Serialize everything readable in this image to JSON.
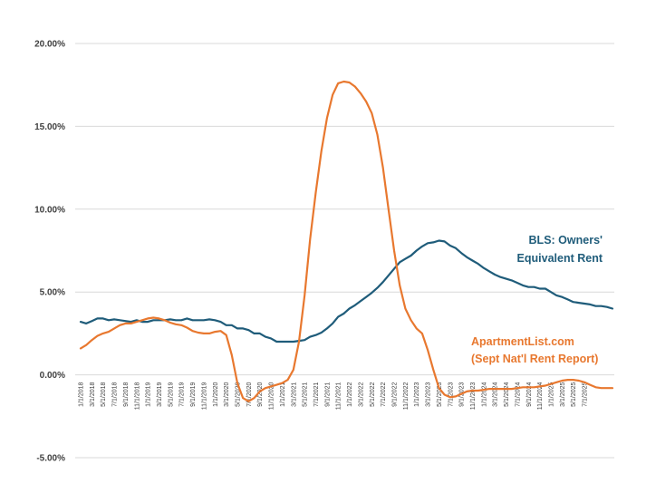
{
  "chart_data": {
    "type": "line",
    "title": "",
    "xlabel": "",
    "ylabel": "",
    "ylim": [
      -5,
      20
    ],
    "yticks": [
      "20.00%",
      "15.00%",
      "10.00%",
      "5.00%",
      "0.00%",
      "-5.00%"
    ],
    "ytick_values": [
      20,
      15,
      10,
      5,
      0,
      -5
    ],
    "grid": "horizontal",
    "legend": "inline labels",
    "colors": {
      "bls": "#1f5c7a",
      "apartmentlist": "#e8782f",
      "grid": "#d9d9d9"
    },
    "x_tick_labels": [
      "1/1/2018",
      "3/1/2018",
      "5/1/2018",
      "7/1/2018",
      "9/1/2018",
      "11/1/2018",
      "1/1/2019",
      "3/1/2019",
      "5/1/2019",
      "7/1/2019",
      "9/1/2019",
      "11/1/2019",
      "1/1/2020",
      "3/1/2020",
      "5/1/2020",
      "7/1/2020",
      "9/1/2020",
      "11/1/2020",
      "1/1/2021",
      "3/1/2021",
      "5/1/2021",
      "7/1/2021",
      "9/1/2021",
      "11/1/2021",
      "1/1/2022",
      "3/1/2022",
      "5/1/2022",
      "7/1/2022",
      "9/1/2022",
      "11/1/2022",
      "1/1/2023",
      "3/1/2023",
      "5/1/2023",
      "7/1/2023",
      "9/1/2023",
      "11/1/2023",
      "1/1/2024",
      "3/1/2024",
      "5/1/2024",
      "7/1/2024",
      "9/1/2024",
      "11/1/2024",
      "1/1/2025",
      "3/1/2025",
      "5/1/2025",
      "7/1/2025"
    ],
    "series": [
      {
        "key": "bls",
        "name": "BLS: Owners' Equivalent Rent",
        "label_lines": [
          "BLS: Owners'",
          "Equivalent Rent"
        ],
        "color": "#1f5c7a",
        "values": [
          3.2,
          3.1,
          3.25,
          3.4,
          3.4,
          3.3,
          3.35,
          3.3,
          3.25,
          3.2,
          3.3,
          3.2,
          3.2,
          3.3,
          3.3,
          3.3,
          3.35,
          3.3,
          3.3,
          3.4,
          3.3,
          3.3,
          3.3,
          3.35,
          3.3,
          3.2,
          3.0,
          3.0,
          2.8,
          2.8,
          2.7,
          2.5,
          2.5,
          2.3,
          2.2,
          2.0,
          2.0,
          2.0,
          2.0,
          2.05,
          2.1,
          2.3,
          2.4,
          2.55,
          2.8,
          3.1,
          3.5,
          3.7,
          4.0,
          4.2,
          4.45,
          4.7,
          4.95,
          5.25,
          5.6,
          6.0,
          6.4,
          6.8,
          7.0,
          7.2,
          7.5,
          7.75,
          7.95,
          8.0,
          8.1,
          8.05,
          7.8,
          7.65,
          7.35,
          7.1,
          6.9,
          6.7,
          6.45,
          6.25,
          6.05,
          5.9,
          5.8,
          5.7,
          5.55,
          5.4,
          5.3,
          5.3,
          5.2,
          5.2,
          5.0,
          4.8,
          4.7,
          4.55,
          4.4,
          4.35,
          4.3,
          4.25,
          4.15,
          4.15,
          4.1,
          4.0
        ]
      },
      {
        "key": "apartmentlist",
        "name": "ApartmentList.com (Sept Nat'l Rent Report)",
        "label_lines": [
          "ApartmentList.com",
          "(Sept Nat'l Rent Report)"
        ],
        "color": "#e8782f",
        "values": [
          1.6,
          1.8,
          2.1,
          2.35,
          2.5,
          2.6,
          2.8,
          3.0,
          3.1,
          3.1,
          3.2,
          3.3,
          3.4,
          3.45,
          3.4,
          3.3,
          3.15,
          3.05,
          3.0,
          2.85,
          2.65,
          2.55,
          2.5,
          2.5,
          2.6,
          2.65,
          2.4,
          1.2,
          -0.5,
          -1.4,
          -1.6,
          -1.4,
          -1.0,
          -0.8,
          -0.7,
          -0.6,
          -0.5,
          -0.3,
          0.3,
          2.0,
          4.8,
          8.2,
          11.0,
          13.5,
          15.5,
          16.9,
          17.6,
          17.7,
          17.65,
          17.4,
          17.0,
          16.5,
          15.8,
          14.5,
          12.5,
          10.0,
          7.5,
          5.4,
          4.0,
          3.3,
          2.8,
          2.5,
          1.5,
          0.3,
          -0.8,
          -1.2,
          -1.35,
          -1.3,
          -1.15,
          -1.0,
          -0.95,
          -0.95,
          -0.9,
          -0.85,
          -0.85,
          -0.85,
          -0.85,
          -0.85,
          -0.8,
          -0.75,
          -0.75,
          -0.75,
          -0.7,
          -0.65,
          -0.55,
          -0.45,
          -0.35,
          -0.3,
          -0.3,
          -0.35,
          -0.45,
          -0.6,
          -0.75,
          -0.8,
          -0.8,
          -0.8
        ]
      }
    ]
  }
}
